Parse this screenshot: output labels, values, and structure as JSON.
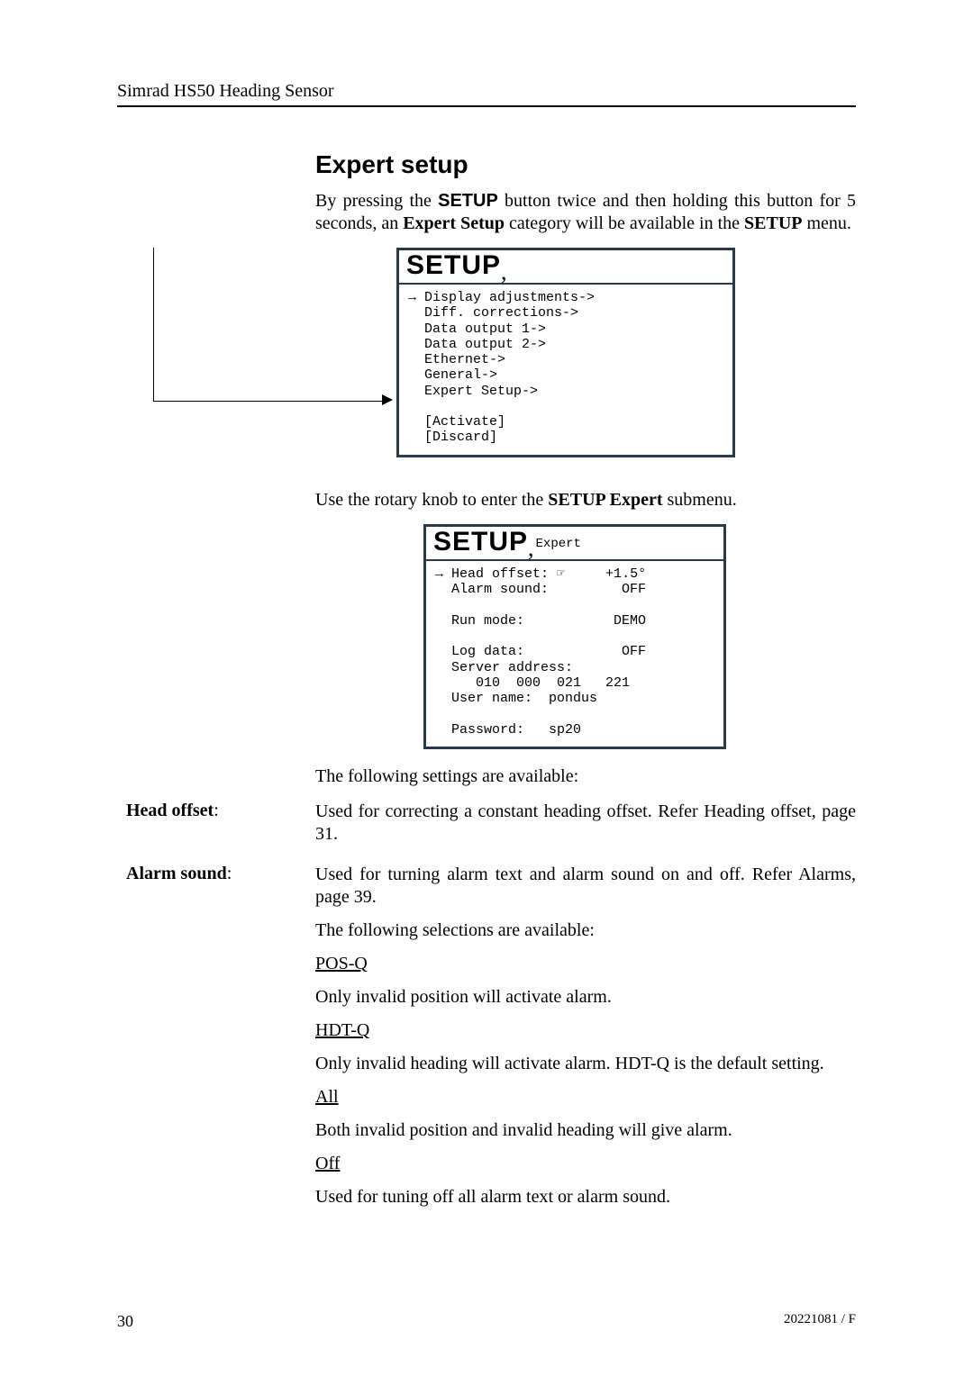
{
  "running_head": "Simrad HS50 Heading Sensor",
  "section_title": "Expert setup",
  "intro": {
    "prefix": "By pressing the ",
    "button_word": "SETUP",
    "mid": " button twice and then holding this button for 5 seconds, an ",
    "bold1": "Expert Setup",
    "mid2": " category will be available in the ",
    "bold2": "SETUP",
    "suffix": " menu."
  },
  "fig1": {
    "title": "SETUP",
    "lines": "→ Display adjustments->\n  Diff. corrections->\n  Data output 1->\n  Data output 2->\n  Ethernet->\n  General->\n  Expert Setup->\n\n  [Activate]\n  [Discard]"
  },
  "para2": {
    "prefix": "Use the rotary knob to enter the ",
    "bold": "SETUP Expert",
    "suffix": " submenu."
  },
  "fig2": {
    "title": "SETUP",
    "sub": "Expert",
    "lines": "→ Head offset: ☞     +1.5°\n  Alarm sound:         OFF\n\n  Run mode:           DEMO\n\n  Log data:            OFF\n  Server address:\n     010  000  021   221\n  User name:  pondus\n\n  Password:   sp20"
  },
  "settings_intro": "The following settings are available:",
  "defs": {
    "head_offset": {
      "label": "Head offset",
      "text": "Used for correcting a constant heading offset. Refer Heading offset, page 31."
    },
    "alarm_sound": {
      "label": "Alarm sound",
      "p1": "Used for turning alarm text and alarm sound on and off. Refer Alarms, page 39.",
      "p2": "The following selections are available:",
      "posq_h": "POS-Q",
      "posq_t": "Only invalid position will activate alarm.",
      "hdtq_h": "HDT-Q",
      "hdtq_t": "Only invalid heading will activate alarm. HDT-Q is the default setting.",
      "all_h": "All",
      "all_t": "Both invalid position and invalid heading will give alarm.",
      "off_h": "Off",
      "off_t": "Used for tuning off all alarm text or alarm sound."
    }
  },
  "footer": {
    "page": "30",
    "doc": "20221081 / F"
  }
}
